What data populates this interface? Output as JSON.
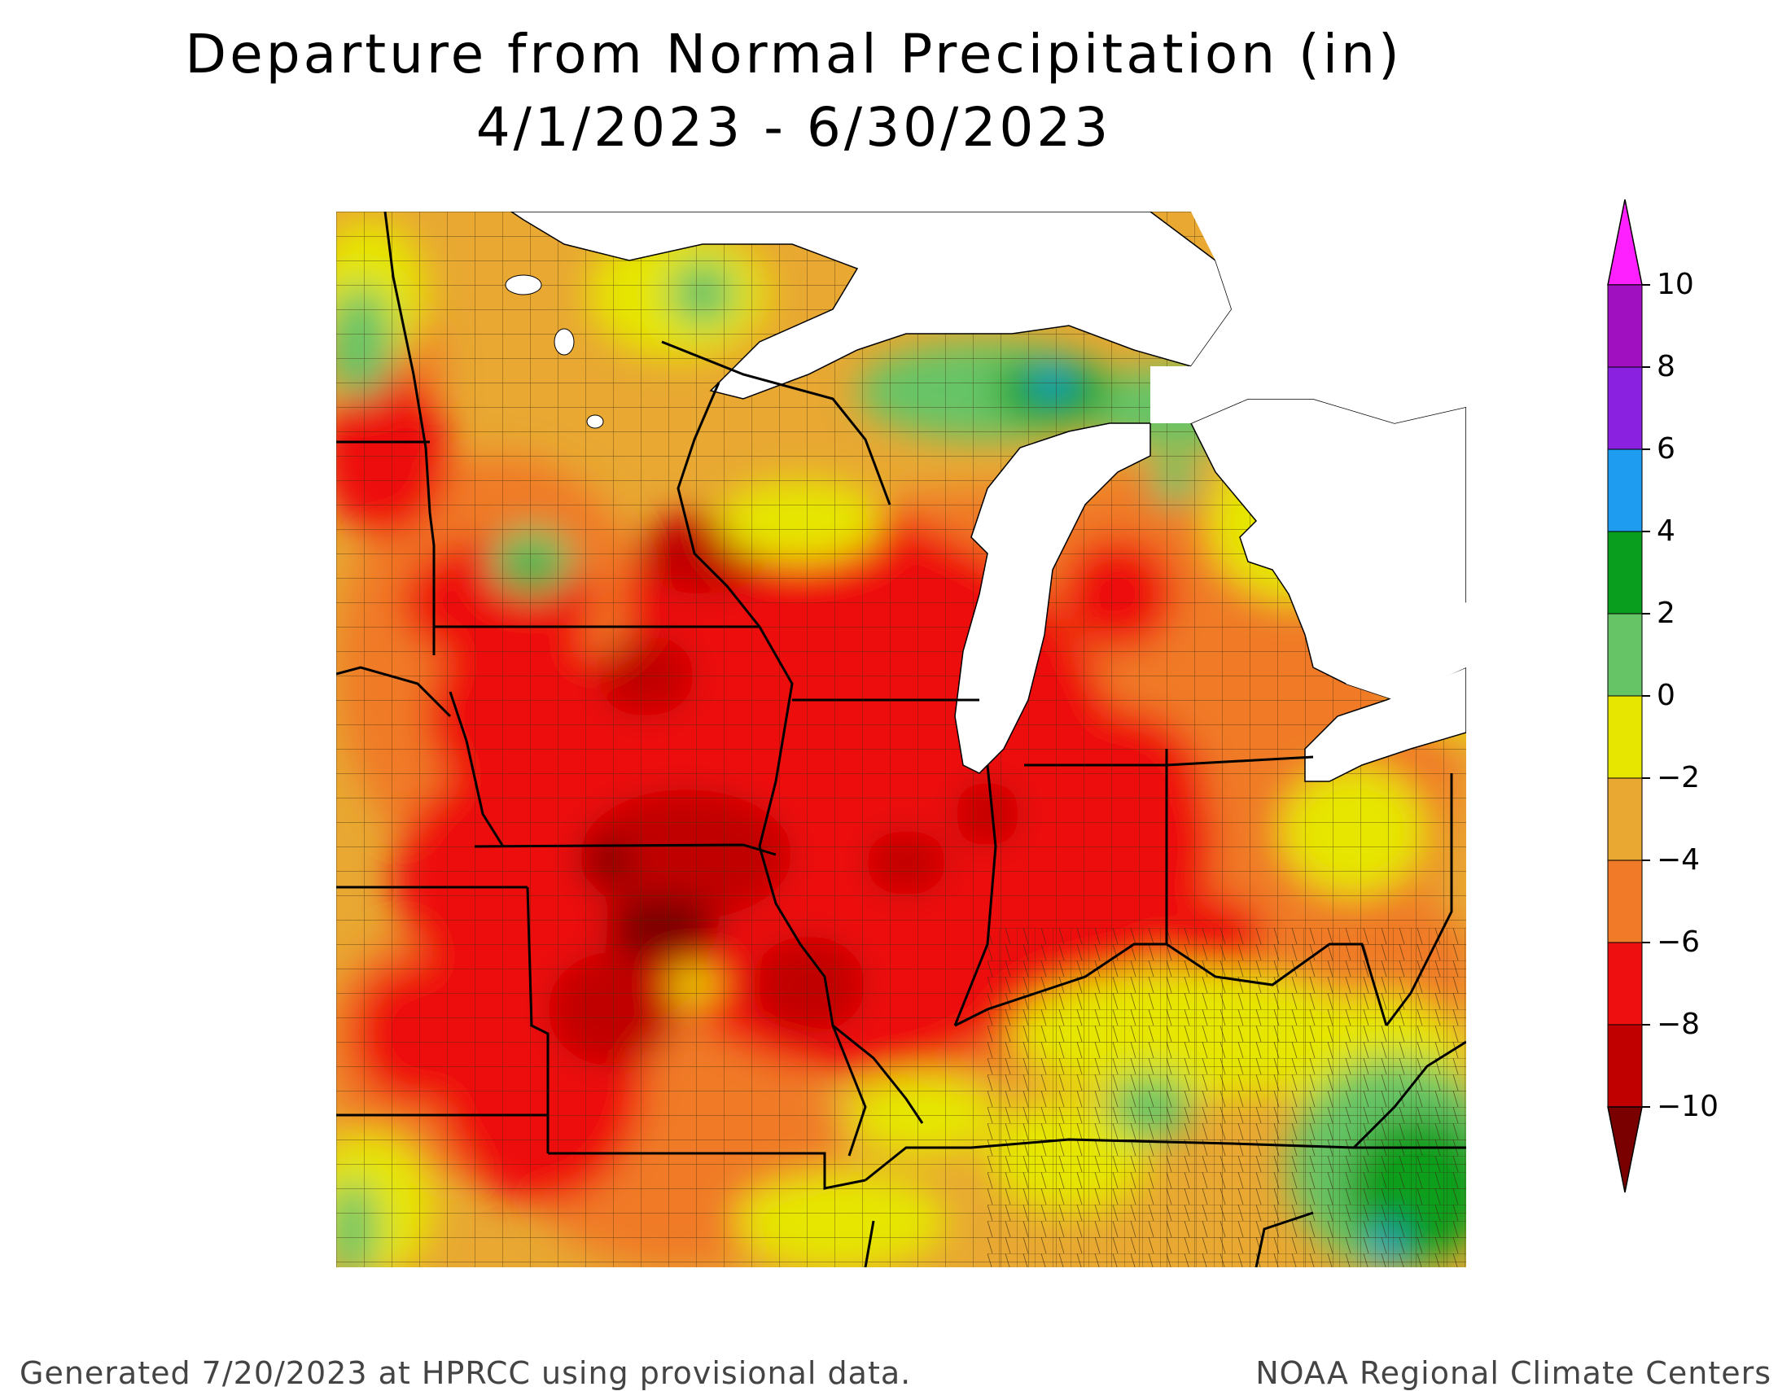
{
  "title": {
    "line1": "Departure from Normal Precipitation (in)",
    "line2": "4/1/2023 - 6/30/2023"
  },
  "legend": {
    "ticks": [
      "10",
      "8",
      "6",
      "4",
      "2",
      "0",
      "−2",
      "−4",
      "−6",
      "−8",
      "−10"
    ],
    "bins": [
      {
        "range": "8 to 10",
        "color": "#a010c0"
      },
      {
        "range": "6 to 8",
        "color": "#8a20e0"
      },
      {
        "range": "4 to 6",
        "color": "#1e9cf0"
      },
      {
        "range": "2 to 4",
        "color": "#0a9e1e"
      },
      {
        "range": "0 to 2",
        "color": "#66c466"
      },
      {
        "range": "-2 to 0",
        "color": "#e6e600"
      },
      {
        "range": "-4 to -2",
        "color": "#e8a832"
      },
      {
        "range": "-6 to -4",
        "color": "#f07a28"
      },
      {
        "range": "-8 to -6",
        "color": "#ee1010"
      },
      {
        "range": "-10 to -8",
        "color": "#c00000"
      }
    ],
    "over_color": "#ff20ff",
    "under_color": "#7a0000"
  },
  "map_colors": {
    "lake": "#ffffff",
    "state_border": "#000000",
    "county_border": "#3a2a10"
  },
  "footer": {
    "left": "Generated 7/20/2023 at HPRCC using provisional data.",
    "right": "NOAA Regional Climate Centers"
  }
}
